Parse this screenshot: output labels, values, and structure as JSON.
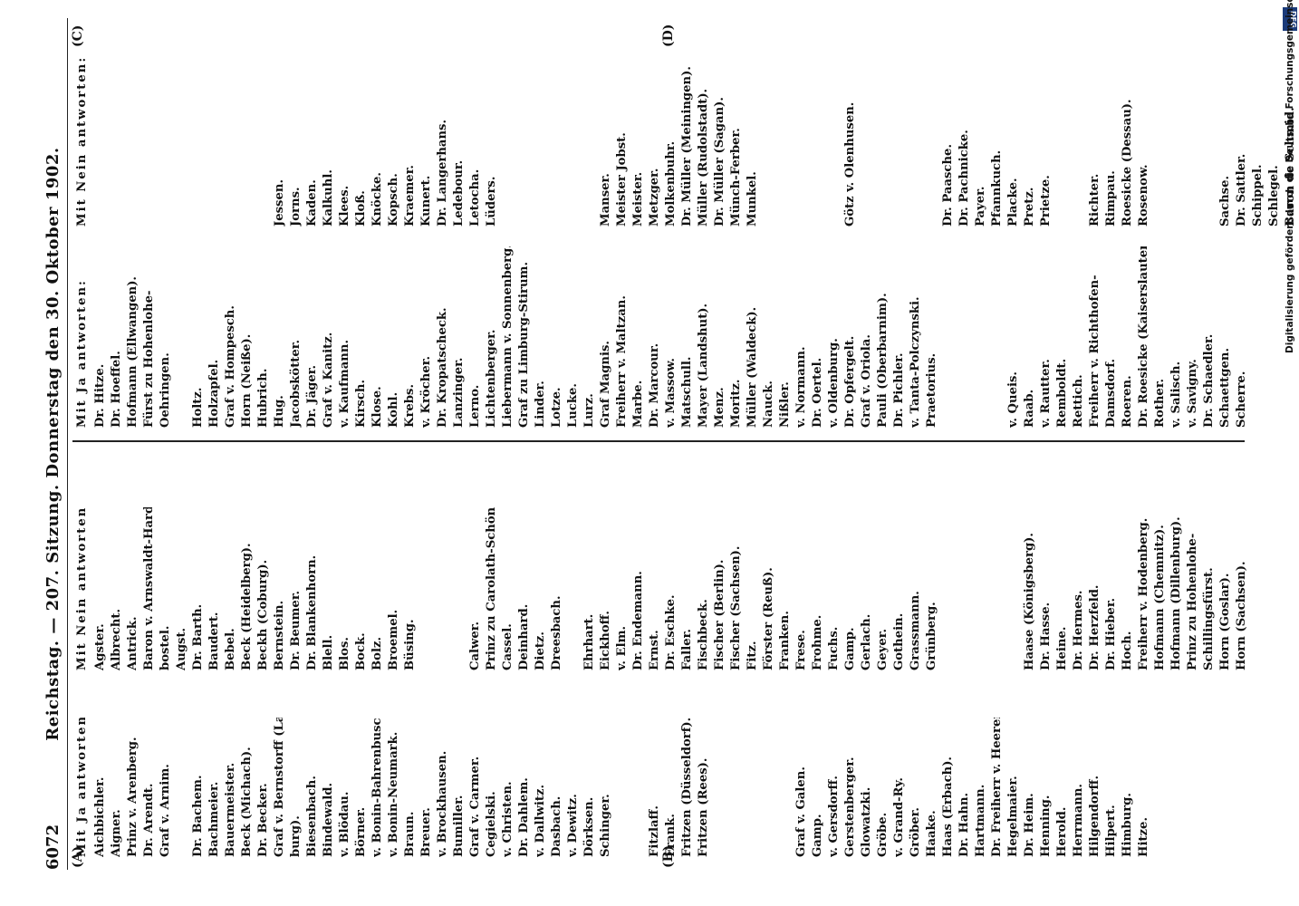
{
  "header": {
    "page_number": "6072",
    "title": "Reichstag. — 207. Sitzung.   Donnerstag den 30. Oktober 1902.",
    "margin_marks": [
      "(A)",
      "(B)",
      "(C)",
      "(D)"
    ]
  },
  "credit": {
    "text": "Digitalisierung gefördert durch die Deutsche Forschungsgemeinschaft •",
    "logo": "DFG"
  },
  "left_page": {
    "ja": {
      "heading": "Mit Ja antworten:",
      "entries": [
        "Aichbichler.",
        "Aigner.",
        "Prinz v. Arenberg.",
        "Dr. Arendt.",
        "Graf v. Arnim.",
        "",
        "Dr. Bachem.",
        "Bachmeier.",
        "Bauermeister.",
        "Beck (Michach).",
        "Dr. Becker.",
        "Graf v. Bernstorff (Lauen-",
        "burg).",
        "Biesenbach.",
        "Bindewald.",
        "v. Blödau.",
        "Börner.",
        "v. Bonin-Bahrenbusch.",
        "v. Bonin-Neumark.",
        "Braun.",
        "Breuer.",
        "v. Brockhausen.",
        "Bumiller.",
        "Graf v. Carmer.",
        "Cegielski.",
        "v. Christen.",
        "Dr. Dahlem.",
        "v. Dallwitz.",
        "Dasbach.",
        "v. Dewitz.",
        "Dörksen.",
        "Schinger.",
        "",
        "",
        "Fitzlaff.",
        "Frank.",
        "Fritzen (Düsseldorf).",
        "Fritzen (Rees).",
        "",
        "",
        "",
        "",
        "",
        "Graf v. Galen.",
        "Gamp.",
        "v. Gersdorff.",
        "Gerstenberger.",
        "Glowatzki.",
        "Gröbe.",
        "v. Grand-Ry.",
        "Gröber.",
        "Haake.",
        "Haas (Erbach).",
        "Dr. Hahn.",
        "Hartmann.",
        "Dr. Freiherr v. Heereman.",
        "Hegelmaier.",
        "Dr. Heim.",
        "Henning.",
        "Herold.",
        "Herrmann.",
        "Hilgendorff.",
        "Hilpert.",
        "Himburg.",
        "Hitze."
      ]
    },
    "nein": {
      "heading": "Mit Nein antworten:",
      "entries": [
        "Agster.",
        "Albrecht.",
        "Antrick.",
        "Baron v. Arnswaldt-Harden-",
        "bostel.",
        "Augst.",
        "Dr. Barth.",
        "Baudert.",
        "Bebel.",
        "Beck (Heidelberg).",
        "Beckh (Coburg).",
        "Bernstein.",
        "Dr. Beumer.",
        "Dr. Blankenhorn.",
        "Blell.",
        "Blos.",
        "Bock.",
        "Bolz.",
        "Broemel.",
        "Büsing.",
        "",
        "",
        "",
        "Calwer.",
        "Prinz zu Carolath-Schönaich.",
        "Cassel.",
        "Deinhard.",
        "Dietz.",
        "Dreesbach.",
        "",
        "Ehrhart.",
        "Eickhoff.",
        "v. Elm.",
        "Dr. Endemann.",
        "Ernst.",
        "Dr. Eschke.",
        "Faller.",
        "Fischbeck.",
        "Fischer (Berlin).",
        "Fischer (Sachsen).",
        "Fitz.",
        "Förster (Reuß).",
        "Franken.",
        "Frese.",
        "Frohme.",
        "Fuchs.",
        "Gamp.",
        "Gerlach.",
        "Geyer.",
        "Gothein.",
        "Grassmann.",
        "Grünberg.",
        "",
        "",
        "",
        "",
        "",
        "Haase (Königsberg).",
        "Dr. Hasse.",
        "Heine.",
        "Dr. Hermes.",
        "Dr. Herzfeld.",
        "Dr. Hieber.",
        "Hoch.",
        "Freiherr v. Hodenberg.",
        "Hofmann (Chemnitz).",
        "Hofmann (Dillenburg).",
        "Prinz zu Hohenlohe-",
        "Schillingsfürst.",
        "Horn (Goslar).",
        "Horn (Sachsen)."
      ]
    }
  },
  "right_page": {
    "ja": {
      "heading": "Mit Ja antworten:",
      "entries": [
        "Dr. Hitze.",
        "Dr. Hoeffel.",
        "Hofmann (Ellwangen).",
        "Fürst zu Hohenlohe-",
        "Oehringen.",
        "",
        "Holtz.",
        "Holzapfel.",
        "Graf v. Hompesch.",
        "Horn (Neiße).",
        "Hubrich.",
        "Hug.",
        "Jacobskötter.",
        "Dr. Jäger.",
        "Graf v. Kanitz.",
        "v. Kaufmann.",
        "Kirsch.",
        "Klose.",
        "Kohl.",
        "Krebs.",
        "v. Kröcher.",
        "Dr. Kropatscheck.",
        "Lanzinger.",
        "Lerno.",
        "Lichtenberger.",
        "Liebermann v. Sonnenberg.",
        "Graf zu Limburg-Stirum.",
        "Linder.",
        "Lotze.",
        "Lucke.",
        "Lurz.",
        "Graf Magnis.",
        "Freiherr v. Maltzan.",
        "Marbe.",
        "Dr. Marcour.",
        "v. Massow.",
        "Matschull.",
        "Mayer (Landshut).",
        "Menz.",
        "Moritz.",
        "Müller (Waldeck).",
        "Nauck.",
        "Nißler.",
        "v. Normann.",
        "Dr. Oertel.",
        "v. Oldenburg.",
        "Dr. Opfergelt.",
        "Graf v. Oriola.",
        "Pauli (Oberbarnim).",
        "Dr. Pichler.",
        "v. Tanta-Polczynski.",
        "Praetorius.",
        "",
        "",
        "",
        "",
        "v. Queis.",
        "Raab.",
        "v. Rautter.",
        "Remboldt.",
        "Rettich.",
        "Freiherr v. Richthofen-",
        "Damsdorf.",
        "Roeren.",
        "Dr. Roesicke (Kaiserslautern).",
        "Rother.",
        "v. Salisch.",
        "v. Savigny.",
        "Dr. Schaedler.",
        "Schaettgen.",
        "Scherre."
      ]
    },
    "nein": {
      "heading": "Mit Nein antworten:",
      "entries": [
        "",
        "",
        "",
        "",
        "",
        "",
        "",
        "",
        "",
        "",
        "",
        "Jessen.",
        "Jorns.",
        "Kaden.",
        "Kalkuhl.",
        "Klees.",
        "Kloß.",
        "Knöcke.",
        "Kopsch.",
        "Kraemer.",
        "Kunert.",
        "Dr. Langerhans.",
        "Ledebour.",
        "Letocha.",
        "Lüders.",
        "",
        "",
        "",
        "",
        "",
        "",
        "Manser.",
        "Meister Jobst.",
        "Meister.",
        "Metzger.",
        "Molkenbuhr.",
        "Dr. Müller (Meiningen).",
        "Müller (Rudolstadt).",
        "Dr. Müller (Sagan).",
        "Münch-Ferber.",
        "Munkel.",
        "",
        "",
        "",
        "",
        "",
        "Götz v. Olenhusen.",
        "",
        "",
        "",
        "",
        "",
        "Dr. Paasche.",
        "Dr. Pachnicke.",
        "Payer.",
        "Pfannkuch.",
        "Placke.",
        "Pretz.",
        "Prietze.",
        "",
        "",
        "Richter.",
        "Rimpau.",
        "Roesicke (Dessau).",
        "Rosenow.",
        "",
        "",
        "",
        "",
        "Sachse.",
        "Dr. Sattler.",
        "Schippel.",
        "Schlegel.",
        "Baron de Schmid."
      ]
    }
  }
}
